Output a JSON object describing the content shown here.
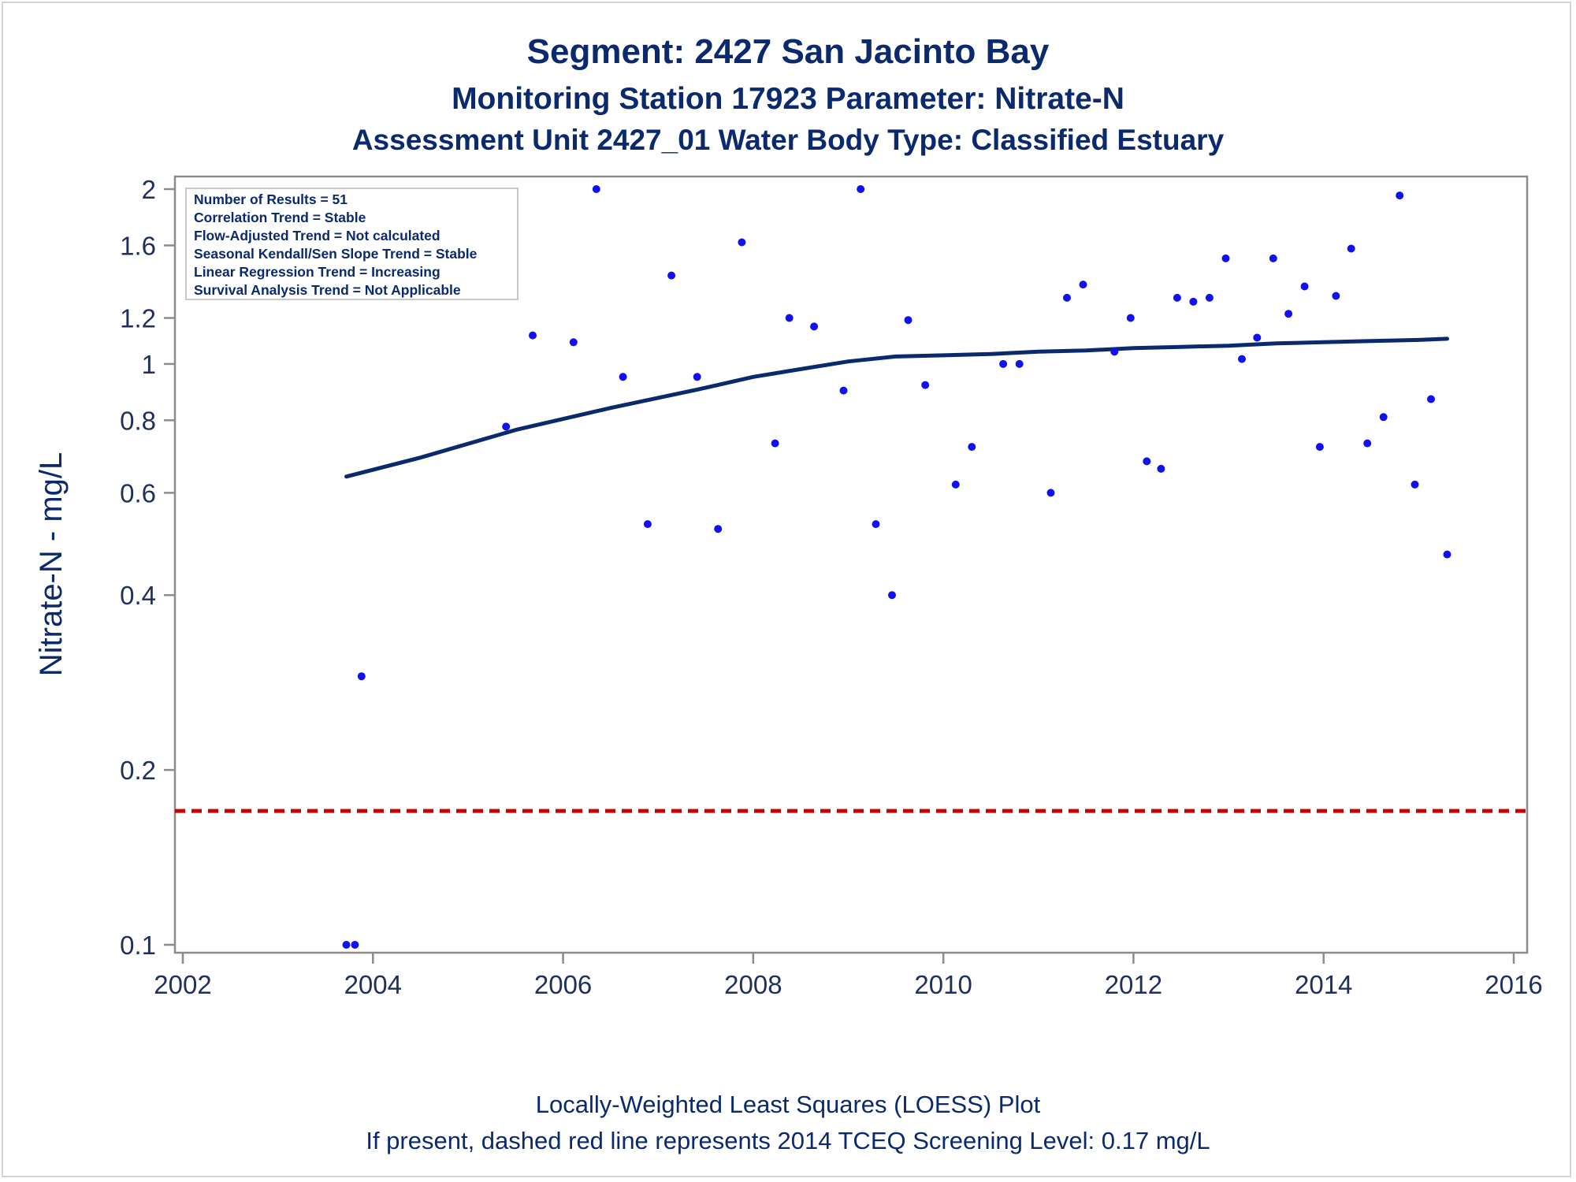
{
  "titles": {
    "line1": "Segment: 2427  San Jacinto Bay",
    "line2": "Monitoring Station 17923 Parameter: Nitrate-N",
    "line3": "Assessment Unit 2427_01   Water Body Type: Classified Estuary"
  },
  "footnotes": {
    "line1": "Locally-Weighted Least Squares (LOESS) Plot",
    "line2": "If present, dashed red line represents 2014 TCEQ Screening Level: 0.17 mg/L"
  },
  "stats_box": [
    "Number of Results = 51",
    "Correlation Trend = Stable",
    "Flow-Adjusted Trend = Not calculated",
    "Seasonal Kendall/Sen Slope Trend = Stable",
    "Linear Regression Trend = Increasing",
    "Survival Analysis Trend = Not Applicable"
  ],
  "colors": {
    "points": "#1010f0",
    "loess": "#0b2a6e",
    "screening": "#cc0000",
    "text": "#0b2a6e"
  },
  "chart_data": {
    "type": "scatter",
    "ylabel": "Nitrate-N - mg/L",
    "xlabel": "",
    "y_scale": "log",
    "xlim": [
      2002,
      2016
    ],
    "ylim": [
      0.096,
      2.1
    ],
    "x_ticks": [
      2002,
      2004,
      2006,
      2008,
      2010,
      2012,
      2014,
      2016
    ],
    "x_tick_labels": [
      "2002",
      "2004",
      "2006",
      "2008",
      "2010",
      "2012",
      "2014",
      "2016"
    ],
    "y_ticks": [
      0.1,
      0.2,
      0.4,
      0.6,
      0.8,
      1,
      1.2,
      1.6,
      2
    ],
    "y_tick_labels": [
      "0.1",
      "0.2",
      "0.4",
      "0.6",
      "0.8",
      "1",
      "1.2",
      "1.6",
      "2"
    ],
    "grid": false,
    "screening_level": 0.17,
    "points": [
      {
        "x": 2003.72,
        "y": 0.1
      },
      {
        "x": 2003.81,
        "y": 0.1
      },
      {
        "x": 2003.88,
        "y": 0.29
      },
      {
        "x": 2005.4,
        "y": 0.78
      },
      {
        "x": 2005.68,
        "y": 1.12
      },
      {
        "x": 2006.11,
        "y": 1.09
      },
      {
        "x": 2006.35,
        "y": 2.0
      },
      {
        "x": 2006.63,
        "y": 0.95
      },
      {
        "x": 2006.89,
        "y": 0.53
      },
      {
        "x": 2007.14,
        "y": 1.42
      },
      {
        "x": 2007.41,
        "y": 0.95
      },
      {
        "x": 2007.63,
        "y": 0.52
      },
      {
        "x": 2007.88,
        "y": 1.62
      },
      {
        "x": 2008.23,
        "y": 0.73
      },
      {
        "x": 2008.38,
        "y": 1.2
      },
      {
        "x": 2008.64,
        "y": 1.16
      },
      {
        "x": 2008.95,
        "y": 0.9
      },
      {
        "x": 2009.13,
        "y": 2.0
      },
      {
        "x": 2009.29,
        "y": 0.53
      },
      {
        "x": 2009.46,
        "y": 0.4
      },
      {
        "x": 2009.63,
        "y": 1.19
      },
      {
        "x": 2009.81,
        "y": 0.92
      },
      {
        "x": 2010.13,
        "y": 0.62
      },
      {
        "x": 2010.3,
        "y": 0.72
      },
      {
        "x": 2010.63,
        "y": 1.0
      },
      {
        "x": 2010.8,
        "y": 1.0
      },
      {
        "x": 2011.13,
        "y": 0.6
      },
      {
        "x": 2011.3,
        "y": 1.3
      },
      {
        "x": 2011.47,
        "y": 1.37
      },
      {
        "x": 2011.8,
        "y": 1.05
      },
      {
        "x": 2011.97,
        "y": 1.2
      },
      {
        "x": 2012.14,
        "y": 0.68
      },
      {
        "x": 2012.29,
        "y": 0.66
      },
      {
        "x": 2012.46,
        "y": 1.3
      },
      {
        "x": 2012.63,
        "y": 1.28
      },
      {
        "x": 2012.8,
        "y": 1.3
      },
      {
        "x": 2012.97,
        "y": 1.52
      },
      {
        "x": 2013.14,
        "y": 1.02
      },
      {
        "x": 2013.3,
        "y": 1.11
      },
      {
        "x": 2013.47,
        "y": 1.52
      },
      {
        "x": 2013.63,
        "y": 1.22
      },
      {
        "x": 2013.8,
        "y": 1.36
      },
      {
        "x": 2013.96,
        "y": 0.72
      },
      {
        "x": 2014.13,
        "y": 1.31
      },
      {
        "x": 2014.29,
        "y": 1.58
      },
      {
        "x": 2014.46,
        "y": 0.73
      },
      {
        "x": 2014.63,
        "y": 0.81
      },
      {
        "x": 2014.8,
        "y": 1.95
      },
      {
        "x": 2014.96,
        "y": 0.62
      },
      {
        "x": 2015.13,
        "y": 0.87
      },
      {
        "x": 2015.3,
        "y": 0.47
      }
    ],
    "loess": [
      {
        "x": 2003.72,
        "y": 0.64
      },
      {
        "x": 2004.5,
        "y": 0.69
      },
      {
        "x": 2005.5,
        "y": 0.77
      },
      {
        "x": 2006.5,
        "y": 0.84
      },
      {
        "x": 2007.5,
        "y": 0.91
      },
      {
        "x": 2008.0,
        "y": 0.95
      },
      {
        "x": 2008.5,
        "y": 0.98
      },
      {
        "x": 2009.0,
        "y": 1.01
      },
      {
        "x": 2009.5,
        "y": 1.03
      },
      {
        "x": 2010.0,
        "y": 1.035
      },
      {
        "x": 2010.5,
        "y": 1.04
      },
      {
        "x": 2011.0,
        "y": 1.05
      },
      {
        "x": 2011.5,
        "y": 1.055
      },
      {
        "x": 2012.0,
        "y": 1.065
      },
      {
        "x": 2012.5,
        "y": 1.07
      },
      {
        "x": 2013.0,
        "y": 1.075
      },
      {
        "x": 2013.5,
        "y": 1.085
      },
      {
        "x": 2014.0,
        "y": 1.09
      },
      {
        "x": 2014.5,
        "y": 1.095
      },
      {
        "x": 2015.0,
        "y": 1.1
      },
      {
        "x": 2015.3,
        "y": 1.105
      }
    ]
  }
}
